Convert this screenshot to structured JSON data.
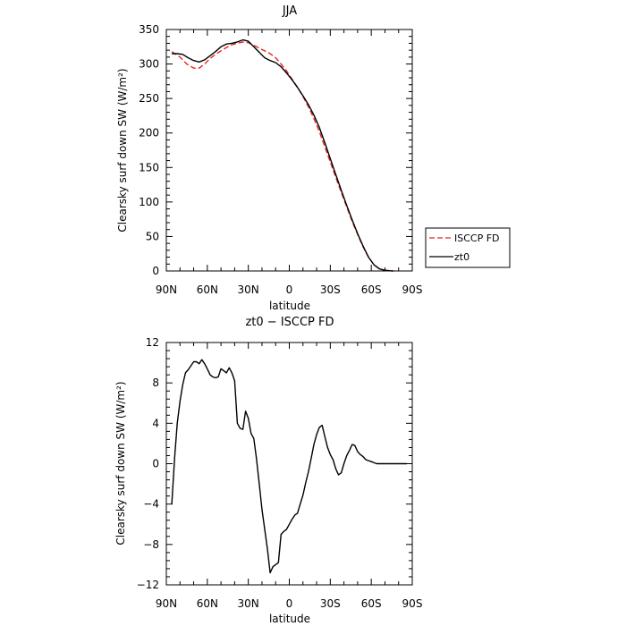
{
  "chart_data": [
    {
      "type": "line",
      "title": "JJA",
      "xlabel": "latitude",
      "ylabel": "Clearsky surf down SW (W/m²)",
      "xticks": [
        "90N",
        "60N",
        "30N",
        "0",
        "30S",
        "60S",
        "90S"
      ],
      "xlim": [
        90,
        -90
      ],
      "ylim": [
        0,
        350
      ],
      "yticks": [
        "0",
        "50",
        "100",
        "150",
        "200",
        "250",
        "300",
        "350"
      ],
      "legend_position": "right-outside",
      "series": [
        {
          "name": "ISCCP FD",
          "color": "#e8231f",
          "dash": "dashed",
          "x": [
            86,
            80,
            75,
            70,
            66,
            62,
            58,
            54,
            50,
            46,
            42,
            38,
            34,
            30,
            26,
            22,
            18,
            14,
            10,
            6,
            2,
            -2,
            -6,
            -10,
            -14,
            -18,
            -22,
            -26,
            -30,
            -34,
            -38,
            -42,
            -46,
            -50,
            -54,
            -58,
            -62,
            -66,
            -70,
            -72,
            -74,
            -76
          ],
          "y": [
            318,
            310,
            300,
            294,
            294,
            300,
            308,
            314,
            319,
            324,
            328,
            330,
            332,
            331,
            327,
            323,
            319,
            315,
            309,
            300,
            290,
            278,
            266,
            253,
            238,
            221,
            202,
            180,
            158,
            136,
            114,
            93,
            72,
            53,
            35,
            20,
            9,
            3,
            1,
            0.5,
            0.2,
            0
          ]
        },
        {
          "name": "zt0",
          "color": "#000000",
          "dash": "solid",
          "x": [
            86,
            82,
            78,
            74,
            70,
            66,
            62,
            58,
            54,
            50,
            46,
            42,
            38,
            34,
            30,
            26,
            22,
            18,
            14,
            10,
            6,
            2,
            -2,
            -6,
            -10,
            -14,
            -18,
            -22,
            -26,
            -30,
            -34,
            -38,
            -42,
            -46,
            -50,
            -54,
            -58,
            -62,
            -66,
            -70,
            -74,
            -76
          ],
          "y": [
            315,
            315,
            314,
            309,
            305,
            303,
            306,
            312,
            318,
            325,
            329,
            330,
            332,
            335,
            333,
            325,
            317,
            309,
            305,
            302,
            296,
            287,
            277,
            266,
            254,
            241,
            226,
            208,
            186,
            163,
            140,
            117,
            95,
            74,
            54,
            36,
            20,
            9,
            3,
            1,
            0.3,
            0
          ]
        }
      ]
    },
    {
      "type": "line",
      "title": "zt0 − ISCCP FD",
      "xlabel": "latitude",
      "ylabel": "Clearsky surf down SW (W/m²)",
      "xticks": [
        "90N",
        "60N",
        "30N",
        "0",
        "30S",
        "60S",
        "90S"
      ],
      "xlim": [
        90,
        -90
      ],
      "ylim": [
        -12,
        12
      ],
      "yticks": [
        "−12",
        "−8",
        "−4",
        "0",
        "4",
        "8",
        "12"
      ],
      "series": [
        {
          "color": "#000000",
          "dash": "solid",
          "x": [
            86,
            84,
            82,
            80,
            78,
            76,
            74,
            72,
            70,
            68,
            66,
            64,
            62,
            60,
            58,
            56,
            54,
            52,
            50,
            48,
            46,
            44,
            42,
            40,
            38,
            36,
            34,
            32,
            30,
            28,
            26,
            24,
            22,
            20,
            18,
            16,
            14,
            12,
            10,
            8,
            6,
            4,
            2,
            0,
            -2,
            -4,
            -6,
            -8,
            -10,
            -12,
            -14,
            -16,
            -18,
            -20,
            -22,
            -24,
            -26,
            -28,
            -30,
            -32,
            -34,
            -36,
            -38,
            -40,
            -42,
            -44,
            -46,
            -48,
            -50,
            -52,
            -54,
            -56,
            -58,
            -60,
            -62,
            -64,
            -66,
            -68,
            -70,
            -72,
            -74,
            -76,
            -78,
            -80,
            -82,
            -84,
            -86
          ],
          "y": [
            -4,
            0.5,
            4,
            6.2,
            7.8,
            9,
            9.3,
            9.7,
            10.1,
            10.1,
            9.9,
            10.3,
            9.9,
            9.4,
            8.8,
            8.6,
            8.5,
            8.6,
            9.4,
            9.2,
            9.0,
            9.5,
            9.0,
            8.2,
            4,
            3.5,
            3.4,
            5.2,
            4.5,
            3,
            2.5,
            0.5,
            -2,
            -4.5,
            -6.5,
            -8.5,
            -10.8,
            -10.2,
            -10,
            -9.8,
            -7,
            -6.7,
            -6.5,
            -6,
            -5.5,
            -5.1,
            -4.9,
            -4,
            -3.1,
            -1.9,
            -0.8,
            0.5,
            1.9,
            2.9,
            3.6,
            3.8,
            2.7,
            1.6,
            0.9,
            0.4,
            -0.5,
            -1.1,
            -0.9,
            0,
            0.8,
            1.3,
            1.9,
            1.8,
            1.2,
            0.9,
            0.7,
            0.4,
            0.3,
            0.2,
            0.1,
            0,
            0,
            0,
            0,
            0,
            0,
            0,
            0,
            0,
            0,
            0,
            0
          ]
        }
      ]
    }
  ]
}
